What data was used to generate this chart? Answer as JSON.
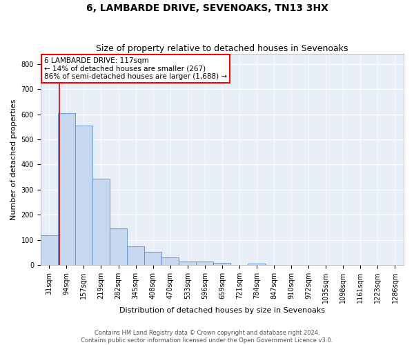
{
  "title": "6, LAMBARDE DRIVE, SEVENOAKS, TN13 3HX",
  "subtitle": "Size of property relative to detached houses in Sevenoaks",
  "xlabel": "Distribution of detached houses by size in Sevenoaks",
  "ylabel": "Number of detached properties",
  "footer_line1": "Contains HM Land Registry data © Crown copyright and database right 2024.",
  "footer_line2": "Contains public sector information licensed under the Open Government Licence v3.0.",
  "bin_labels": [
    "31sqm",
    "94sqm",
    "157sqm",
    "219sqm",
    "282sqm",
    "345sqm",
    "408sqm",
    "470sqm",
    "533sqm",
    "596sqm",
    "659sqm",
    "721sqm",
    "784sqm",
    "847sqm",
    "910sqm",
    "972sqm",
    "1035sqm",
    "1098sqm",
    "1161sqm",
    "1223sqm",
    "1286sqm"
  ],
  "bar_values": [
    120,
    605,
    555,
    345,
    145,
    75,
    52,
    30,
    15,
    13,
    10,
    0,
    6,
    0,
    0,
    0,
    0,
    0,
    0,
    0,
    0
  ],
  "bar_color": "#c5d8f0",
  "bar_edge_color": "#5b8fc9",
  "vline_x": 0.575,
  "vline_color": "#cc0000",
  "annotation_text_line1": "6 LAMBARDE DRIVE: 117sqm",
  "annotation_text_line2": "← 14% of detached houses are smaller (267)",
  "annotation_text_line3": "86% of semi-detached houses are larger (1,688) →",
  "ylim": [
    0,
    840
  ],
  "yticks": [
    0,
    100,
    200,
    300,
    400,
    500,
    600,
    700,
    800
  ],
  "plot_bg_color": "#e8eef8",
  "grid_color": "#ffffff",
  "title_fontsize": 10,
  "subtitle_fontsize": 9,
  "axis_label_fontsize": 8,
  "tick_fontsize": 7,
  "annotation_fontsize": 7.5
}
